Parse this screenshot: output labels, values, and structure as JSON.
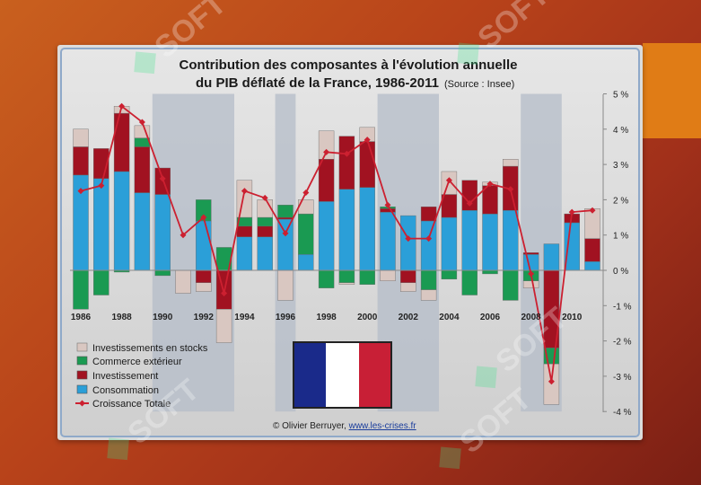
{
  "title_line1": "Contribution des composantes à l'évolution annuelle",
  "title_line2": "du PIB déflaté de la France, 1986-2011",
  "source_note": "(Source : Insee)",
  "credit_prefix": "© Olivier Berruyer, ",
  "credit_link": "www.les-crises.fr",
  "watermark": "SOFT",
  "colors": {
    "stocks": "#d9c7c1",
    "commerce": "#1a9a52",
    "investissement": "#a11221",
    "consommation": "#2b9fd8",
    "croissance": "#cc2030",
    "shade": "#b4bcc8",
    "flag_blue": "#1a2a8a",
    "flag_white": "#ffffff",
    "flag_red": "#c81f36"
  },
  "chart_data": {
    "type": "bar",
    "stacked": true,
    "title": "Contribution des composantes à l'évolution annuelle du PIB déflaté de la France, 1986-2011",
    "years": [
      1986,
      1987,
      1988,
      1989,
      1990,
      1991,
      1992,
      1993,
      1994,
      1995,
      1996,
      1997,
      1998,
      1999,
      2000,
      2001,
      2002,
      2003,
      2004,
      2005,
      2006,
      2007,
      2008,
      2009,
      2010,
      2011
    ],
    "x_tick_labels": [
      "1986",
      "1988",
      "1990",
      "1992",
      "1994",
      "1996",
      "1998",
      "2000",
      "2002",
      "2004",
      "2006",
      "2008",
      "2010"
    ],
    "ylim": [
      -4,
      5
    ],
    "y_tick_labels": [
      "5 %",
      "4 %",
      "3 %",
      "2 %",
      "1 %",
      "0 %",
      "-1 %",
      "-2 %",
      "-3 %",
      "-4 %"
    ],
    "series": [
      {
        "name": "Consommation",
        "key": "consommation",
        "values": [
          2.7,
          2.6,
          2.8,
          2.2,
          2.15,
          0.0,
          1.4,
          0.0,
          0.95,
          0.95,
          1.45,
          0.45,
          1.95,
          2.3,
          2.35,
          1.65,
          1.55,
          1.4,
          1.5,
          1.7,
          1.6,
          1.7,
          0.45,
          0.75,
          1.35,
          0.25
        ]
      },
      {
        "name": "Investissement",
        "key": "investissement",
        "values": [
          0.8,
          0.85,
          1.65,
          1.3,
          0.75,
          0.0,
          -0.35,
          -1.1,
          0.3,
          0.3,
          0.05,
          0.0,
          1.2,
          1.5,
          1.3,
          0.1,
          -0.35,
          0.4,
          0.65,
          0.85,
          0.8,
          1.25,
          0.05,
          -2.2,
          0.25,
          0.65
        ]
      },
      {
        "name": "Commerce extérieur",
        "key": "commerce",
        "values": [
          -1.1,
          -0.7,
          -0.05,
          0.25,
          -0.15,
          0.0,
          0.6,
          0.65,
          0.25,
          0.25,
          0.35,
          1.15,
          -0.5,
          -0.35,
          -0.4,
          0.05,
          0.0,
          -0.55,
          -0.25,
          -0.7,
          -0.1,
          -0.85,
          -0.3,
          -0.45,
          0.0,
          0.0
        ]
      },
      {
        "name": "Investissements en stocks",
        "key": "stocks",
        "values": [
          0.5,
          0.0,
          0.2,
          0.35,
          0.0,
          -0.65,
          -0.25,
          -0.95,
          1.05,
          0.5,
          -0.85,
          0.4,
          0.8,
          -0.05,
          0.4,
          -0.3,
          -0.25,
          -0.3,
          0.65,
          0.0,
          0.1,
          0.2,
          -0.2,
          -1.15,
          0.0,
          0.85
        ]
      },
      {
        "name": "Croissance Totale",
        "key": "croissance",
        "type": "line",
        "values": [
          2.25,
          2.4,
          4.65,
          4.2,
          2.6,
          1.0,
          1.5,
          -0.65,
          2.25,
          2.05,
          1.05,
          2.2,
          3.35,
          3.3,
          3.7,
          1.85,
          0.9,
          0.9,
          2.55,
          1.9,
          2.45,
          2.3,
          -0.1,
          -3.15,
          1.65,
          1.7
        ]
      }
    ],
    "shaded_year_ranges": [
      [
        1990,
        1993
      ],
      [
        1996,
        1996
      ],
      [
        2001,
        2003
      ],
      [
        2008,
        2009
      ]
    ],
    "legend_position": "bottom-left",
    "grid": false
  }
}
